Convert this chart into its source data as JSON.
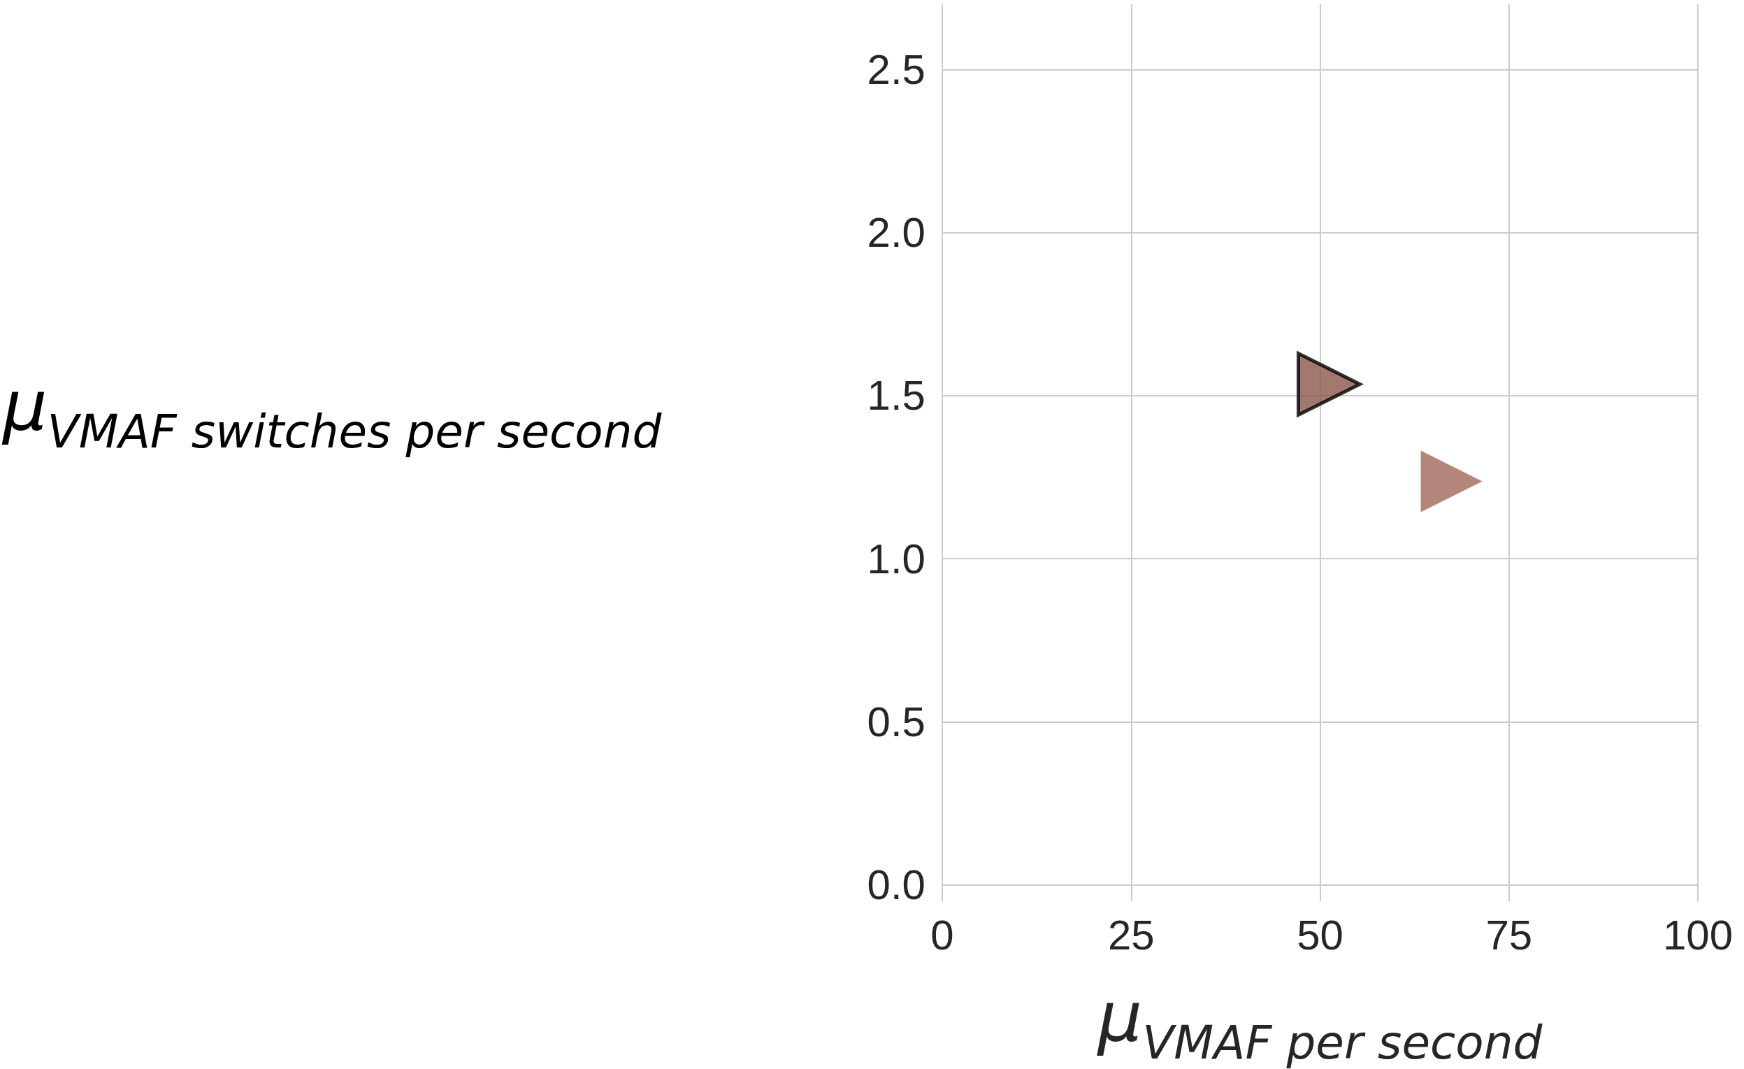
{
  "chart_data": {
    "type": "scatter",
    "xlabel": "μ$_{VMAF per second}$",
    "ylabel": "μ$_{VMAF switches per second}$",
    "xlim": [
      0,
      100
    ],
    "xticks": [
      0,
      25,
      50,
      75,
      100
    ],
    "ylim": [
      -0.05,
      2.7
    ],
    "yticks": [
      {
        "value": 0,
        "label": "0.0"
      },
      0.5,
      {
        "value": 1,
        "label": "1.0"
      },
      1.5,
      {
        "value": 2,
        "label": "2.0"
      },
      2.5
    ],
    "grid": true,
    "marker": "triangle",
    "series": [
      {
        "color": "#8c564b",
        "x": [
          51.2
        ],
        "values": [
          1.535
        ]
      },
      {
        "color": "#a0665a",
        "x": [
          67.4
        ],
        "values": [
          1.237
        ]
      }
    ]
  }
}
